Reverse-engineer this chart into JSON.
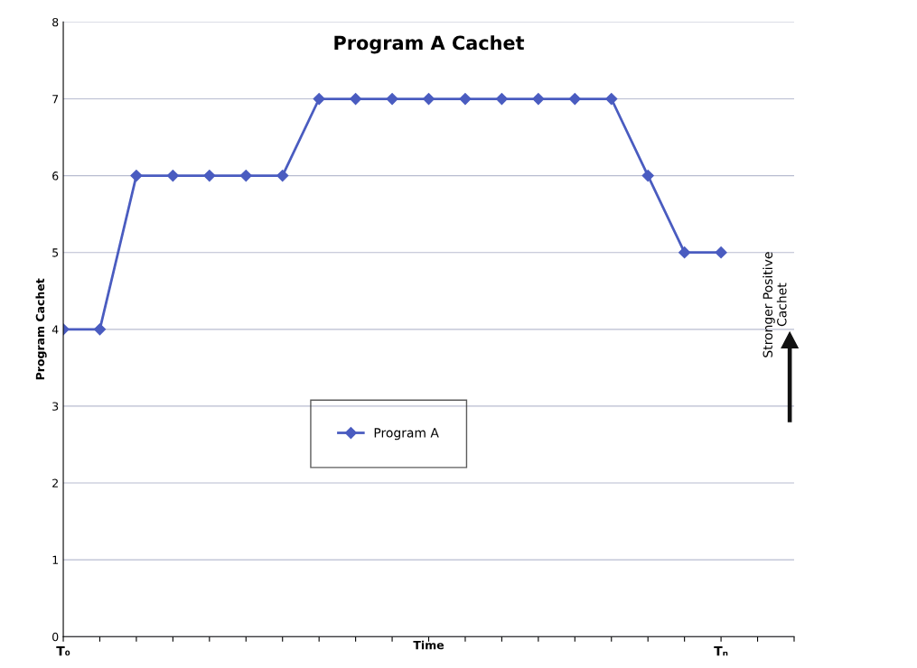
{
  "chart_data": {
    "type": "line",
    "title": "Program A Cachet",
    "xlabel": "Time",
    "ylabel": "Program Cachet",
    "categories": [
      "T₀",
      null,
      null,
      null,
      null,
      null,
      null,
      null,
      null,
      null,
      null,
      null,
      null,
      null,
      null,
      null,
      null,
      null,
      "Tₙ",
      null,
      null
    ],
    "series": [
      {
        "name": "Program A",
        "color": "#4a5cc0",
        "values": [
          4,
          4,
          6,
          6,
          6,
          6,
          6,
          7,
          7,
          7,
          7,
          7,
          7,
          7,
          7,
          7,
          6,
          5,
          5,
          null,
          null
        ]
      }
    ],
    "ylim": [
      0,
      8
    ],
    "yticks": [
      0,
      1,
      2,
      3,
      4,
      5,
      6,
      7,
      8
    ],
    "grid": "y",
    "legend": "center left",
    "marker": "diamond",
    "line_style": "solid",
    "annotations": [
      "Stronger Positive\nCachet"
    ]
  }
}
